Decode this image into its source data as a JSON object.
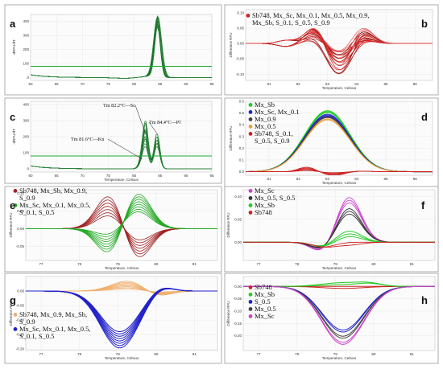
{
  "chart_data": [
    {
      "panel": "a",
      "type": "line",
      "ylabel": "-dRFU/dT",
      "xlabel": "",
      "xlim": [
        60,
        95
      ],
      "ylim": [
        -20,
        450
      ],
      "xticks": [
        "60",
        "65",
        "70",
        "75",
        "80",
        "85",
        "90",
        "95"
      ],
      "yticks": [
        "0",
        "100",
        "200",
        "300",
        "400"
      ],
      "threshold": 80,
      "peaks": [
        84.5
      ]
    },
    {
      "panel": "b",
      "type": "line",
      "ylabel": "Difference RFU",
      "xlabel": "Temperature, Celsius",
      "xlim": [
        80.2,
        86.6
      ],
      "ylim": [
        -0.12,
        0.11
      ],
      "xticks": [
        "81",
        "82",
        "83",
        "84",
        "85",
        "86"
      ],
      "yticks": [
        "-0.10",
        "-0.05",
        "0.00",
        "0.05",
        "0.10"
      ],
      "legend": [
        {
          "label": "Sb748, Mx_Sc, Mx_0.1, Mx_0.5, Mx_0.9, Mx_Sb, S_0.1, S_0.5, S_0.9",
          "color": "#d42020"
        }
      ]
    },
    {
      "panel": "c",
      "type": "line",
      "ylabel": "-dRFU/dT",
      "xlabel": "Temperature, Celsius",
      "xlim": [
        60,
        95
      ],
      "ylim": [
        -20,
        420
      ],
      "xticks": [
        "60",
        "65",
        "70",
        "75",
        "80",
        "85",
        "90",
        "95"
      ],
      "yticks": [
        "0",
        "100",
        "200",
        "300",
        "400"
      ],
      "threshold": 80,
      "annotations": [
        {
          "text": "Tm 82.2°C—Sc",
          "x": 82.2
        },
        {
          "text": "Tm 84.4°C—Pf",
          "x": 84.4
        },
        {
          "text": "Tm 81.6°C—Kn",
          "x": 81.6
        }
      ]
    },
    {
      "panel": "d",
      "type": "line",
      "ylabel": "Difference RFU",
      "xlabel": "Temperature, Celsius",
      "xlim": [
        80.2,
        86.6
      ],
      "ylim": [
        -0.03,
        0.6
      ],
      "xticks": [
        "81",
        "82",
        "83",
        "84",
        "85",
        "86"
      ],
      "yticks": [
        "0.0",
        "0.1",
        "0.2",
        "0.3",
        "0.4",
        "0.5",
        "0.6"
      ],
      "legend": [
        {
          "label": "Mx_Sb",
          "color": "#22cc22"
        },
        {
          "label": "Mx_Sc, Mx_0.1",
          "color": "#2222dd"
        },
        {
          "label": "Mx_0.9",
          "color": "#444444"
        },
        {
          "label": "Mx_0.5",
          "color": "#e8a040"
        },
        {
          "label": "Sb748, S_0.1, S_0.5, S_0.9",
          "color": "#cc2222"
        }
      ],
      "series_peaks": [
        {
          "name": "Mx_Sb",
          "peak": 0.52
        },
        {
          "name": "Mx_Sc, Mx_0.1",
          "peak": 0.49
        },
        {
          "name": "Mx_0.9",
          "peak": 0.47
        },
        {
          "name": "Mx_0.5",
          "peak": 0.45
        },
        {
          "name": "Sb748, S_0.1, S_0.5, S_0.9",
          "peak": 0.02
        }
      ]
    },
    {
      "panel": "e",
      "type": "line",
      "ylabel": "Difference RFU",
      "xlabel": "Temperature, Celsius",
      "xlim": [
        76.6,
        81.6
      ],
      "ylim": [
        -0.09,
        0.11
      ],
      "xticks": [
        "77",
        "78",
        "79",
        "80",
        "81"
      ],
      "yticks": [
        "-0.05",
        "0.00",
        "0.05",
        "0.10"
      ],
      "legend": [
        {
          "label": "Sb748, Mx_Sb, Mx_0.9, S_0.9",
          "color": "#a02020"
        },
        {
          "label": "Mx_Sc, Mx_0.1, Mx_0.5, S_0.1, S_0.5",
          "color": "#22aa22"
        }
      ]
    },
    {
      "panel": "f",
      "type": "line",
      "ylabel": "Difference RFU",
      "xlabel": "Temperature, Celsius",
      "xlim": [
        76.6,
        81.6
      ],
      "ylim": [
        -0.04,
        0.115
      ],
      "xticks": [
        "77",
        "78",
        "79",
        "80",
        "81"
      ],
      "yticks": [
        "0.00",
        "0.05",
        "0.10"
      ],
      "legend": [
        {
          "label": "Mx_Sc",
          "color": "#cc44cc"
        },
        {
          "label": "Mx_0.5, S_0.5",
          "color": "#333333"
        },
        {
          "label": "Mx_Sb",
          "color": "#22cc22"
        },
        {
          "label": "Sb748",
          "color": "#cc2222"
        }
      ],
      "series_peaks": [
        {
          "name": "Mx_Sc",
          "peak": 0.1
        },
        {
          "name": "Mx_0.5, S_0.5",
          "peak": 0.075
        },
        {
          "name": "Mx_Sb",
          "peak": 0.025
        },
        {
          "name": "Sb748",
          "peak": 0.0
        }
      ]
    },
    {
      "panel": "g",
      "type": "line",
      "ylabel": "Difference RFU",
      "xlabel": "Temperature, Celsius",
      "xlim": [
        76.6,
        81.6
      ],
      "ylim": [
        -0.205,
        0.05
      ],
      "xticks": [
        "77",
        "78",
        "79",
        "80",
        "81"
      ],
      "yticks": [
        "-0.20",
        "-0.15",
        "-0.10",
        "-0.05",
        "0.00"
      ],
      "legend": [
        {
          "label": "Sb748, Mx_0.9, Mx_Sb, S_0.9",
          "color": "#f0b070"
        },
        {
          "label": "Mx_Sc, Mx_0.1, Mx_0.5, S_0.1, S_0.5",
          "color": "#2222cc"
        }
      ]
    },
    {
      "panel": "h",
      "type": "line",
      "ylabel": "Difference RFU",
      "xlabel": "Temperature, Celsius",
      "xlim": [
        76.6,
        81.6
      ],
      "ylim": [
        -0.26,
        0.04
      ],
      "xticks": [
        "77",
        "78",
        "79",
        "80",
        "81"
      ],
      "yticks": [
        "-0.20",
        "-0.15",
        "-0.10",
        "-0.05",
        "0.00"
      ],
      "legend": [
        {
          "label": "Sb748",
          "color": "#cc2222"
        },
        {
          "label": "Mx_Sb",
          "color": "#22cc22"
        },
        {
          "label": "S_0.5",
          "color": "#2222cc"
        },
        {
          "label": "Mx_0.5",
          "color": "#444444"
        },
        {
          "label": "Mx_Sc",
          "color": "#cc44cc"
        }
      ],
      "series_peaks": [
        {
          "name": "Sb748",
          "peak": 0.0
        },
        {
          "name": "Mx_Sb",
          "peak": 0.015
        },
        {
          "name": "S_0.5",
          "peak": -0.185
        },
        {
          "name": "Mx_0.5",
          "peak": -0.21
        },
        {
          "name": "Mx_Sc",
          "peak": -0.235
        }
      ]
    }
  ]
}
